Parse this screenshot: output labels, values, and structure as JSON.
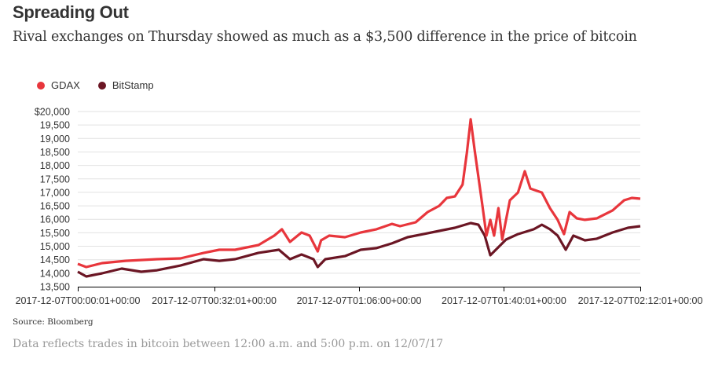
{
  "header": {
    "title": "Spreading Out",
    "subtitle": "Rival exchanges on Thursday showed as much as a $3,500 difference in the price of bitcoin"
  },
  "footer": {
    "source": "Source: Bloomberg",
    "note": "Data reflects trades in bitcoin between 12:00 a.m. and 5:00 p.m. on 12/07/17"
  },
  "chart_data": {
    "type": "line",
    "title": "Spreading Out",
    "subtitle": "Rival exchanges on Thursday showed as much as a $3,500 difference in the price of bitcoin",
    "xlabel": "",
    "ylabel": "",
    "x_unit": "minutes since 2017-12-07T00:00:01+00:00",
    "xlim": [
      0,
      132
    ],
    "ylim": [
      13500,
      20000
    ],
    "grid": true,
    "legend_position": "top-left",
    "y_ticks": [
      13500,
      14000,
      14500,
      15000,
      15500,
      16000,
      16500,
      17000,
      17500,
      18000,
      18500,
      19000,
      19500,
      20000
    ],
    "y_tick_labels": [
      "13,500",
      "14,000",
      "14,500",
      "15,000",
      "15,500",
      "16,000",
      "16,500",
      "17,000",
      "17,500",
      "18,000",
      "18,500",
      "19,000",
      "19,500",
      "$20,000"
    ],
    "x_ticks": [
      0,
      32,
      66,
      100,
      132
    ],
    "x_tick_labels": [
      "2017-12-07T00:00:01+00:00",
      "2017-12-07T00:32:01+00:00",
      "2017-12-07T01:06:00+00:00",
      "2017-12-07T01:40:01+00:00",
      "2017-12-07T02:12:01+00:00"
    ],
    "series": [
      {
        "name": "GDAX",
        "color": "#e8363c",
        "x": [
          0,
          2,
          5.7,
          11.2,
          18.6,
          24.1,
          29.5,
          33.2,
          36.9,
          42.4,
          46.1,
          47.9,
          49.8,
          52.5,
          54.4,
          56.3,
          57.1,
          59.0,
          62.7,
          66.4,
          70.1,
          73.7,
          75.6,
          79.3,
          82.1,
          84.8,
          86.6,
          88.5,
          90.3,
          91.3,
          92.2,
          93.1,
          94.0,
          94.9,
          95.9,
          96.8,
          97.7,
          98.7,
          99.6,
          100.5,
          101.4,
          103.3,
          104.9,
          106.2,
          108.9,
          110.8,
          112.6,
          114.1,
          115.4,
          117.1,
          119.0,
          121.8,
          125.5,
          128.2,
          130.0,
          132
        ],
        "values": [
          14345,
          14230,
          14375,
          14460,
          14520,
          14550,
          14750,
          14870,
          14870,
          15045,
          15395,
          15630,
          15160,
          15510,
          15395,
          14810,
          15220,
          15395,
          15335,
          15510,
          15630,
          15830,
          15745,
          15890,
          16270,
          16500,
          16795,
          16850,
          17290,
          18455,
          19710,
          18600,
          17580,
          16560,
          15395,
          15980,
          15395,
          16415,
          15250,
          15980,
          16705,
          16995,
          17785,
          17140,
          16995,
          16415,
          15980,
          15450,
          16270,
          16035,
          15980,
          16035,
          16330,
          16705,
          16795,
          16765
        ]
      },
      {
        "name": "BitStamp",
        "color": "#6b1624",
        "x": [
          0,
          2,
          5.7,
          10.3,
          14.9,
          18.6,
          24.1,
          29.5,
          33.2,
          36.9,
          42.4,
          47.2,
          49.8,
          52.5,
          55.3,
          56.3,
          58.1,
          62.7,
          66.4,
          70.1,
          73.7,
          77.4,
          81.1,
          84.8,
          88.5,
          92.2,
          94.0,
          95.5,
          96.8,
          98.1,
          100.5,
          103.3,
          107.0,
          108.9,
          110.8,
          112.6,
          114.5,
          116.3,
          119.0,
          121.8,
          125.5,
          129.1,
          132
        ],
        "values": [
          14055,
          13880,
          13995,
          14170,
          14055,
          14110,
          14285,
          14520,
          14460,
          14520,
          14755,
          14870,
          14520,
          14695,
          14520,
          14230,
          14520,
          14635,
          14870,
          14930,
          15105,
          15335,
          15450,
          15570,
          15685,
          15860,
          15800,
          15395,
          14665,
          14870,
          15250,
          15450,
          15630,
          15800,
          15630,
          15395,
          14870,
          15395,
          15220,
          15280,
          15510,
          15685,
          15745
        ]
      }
    ]
  }
}
